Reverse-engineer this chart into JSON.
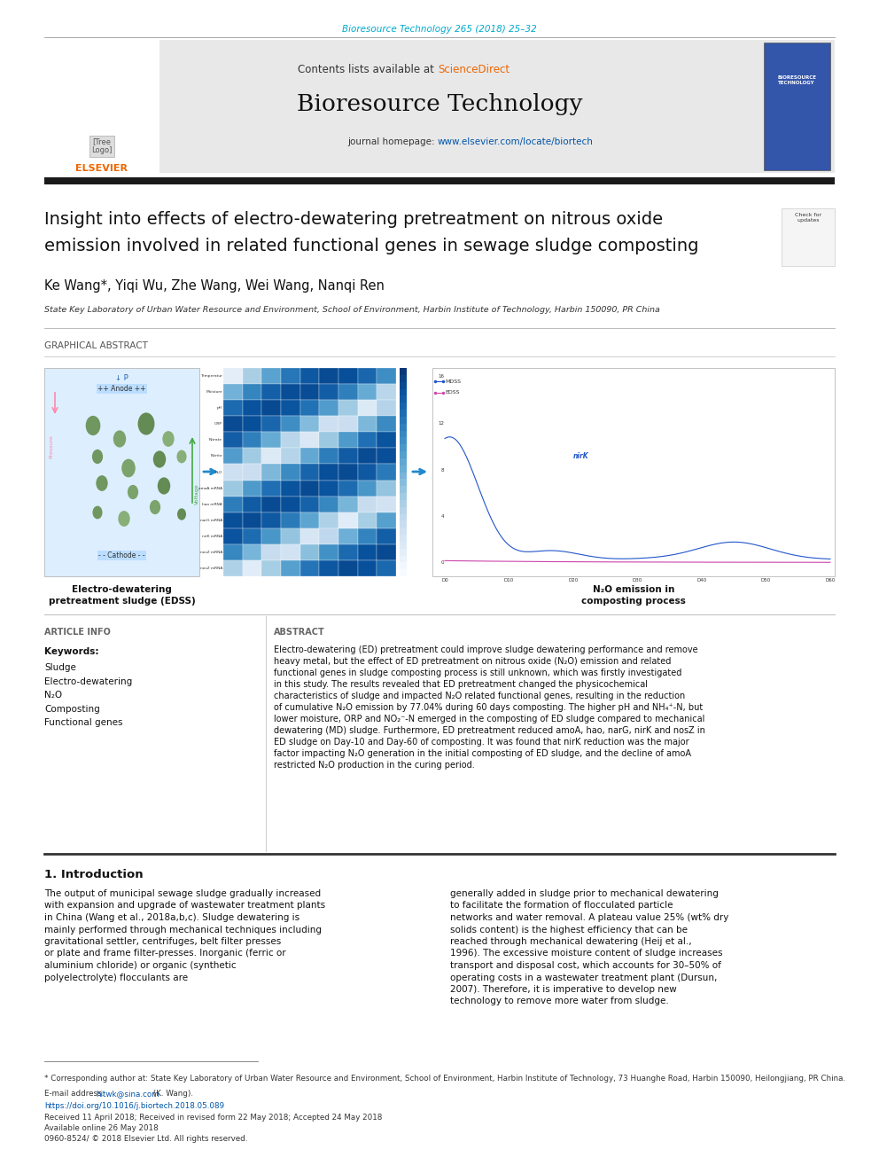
{
  "page_width": 9.92,
  "page_height": 13.23,
  "bg_color": "#ffffff",
  "top_journal_line": "Bioresource Technology 265 (2018) 25–32",
  "top_journal_color": "#00aacc",
  "header_bg": "#e8e8e8",
  "header_text1": "Contents lists available at ",
  "header_sciencedirect": "ScienceDirect",
  "header_sd_color": "#ee6600",
  "journal_title": "Bioresource Technology",
  "journal_homepage_text": "journal homepage: ",
  "journal_url": "www.elsevier.com/locate/biortech",
  "journal_url_color": "#0055aa",
  "article_title_line1": "Insight into effects of electro-dewatering pretreatment on nitrous oxide",
  "article_title_line2": "emission involved in related functional genes in sewage sludge composting",
  "authors": "Ke Wang*, Yiqi Wu, Zhe Wang, Wei Wang, Nanqi Ren",
  "affiliation": "State Key Laboratory of Urban Water Resource and Environment, School of Environment, Harbin Institute of Technology, Harbin 150090, PR China",
  "section_graphical": "GRAPHICAL ABSTRACT",
  "graphical_label1": "Electro-dewatering",
  "graphical_label2": "pretreatment sludge (EDSS)",
  "graphical_caption1": "N₂O emission in",
  "graphical_caption2": "composting process",
  "section_article": "ARTICLE INFO",
  "keywords_label": "Keywords:",
  "keywords": [
    "Sludge",
    "Electro-dewatering",
    "N₂O",
    "Composting",
    "Functional genes"
  ],
  "section_abstract": "ABSTRACT",
  "abstract_text": "Electro-dewatering (ED) pretreatment could improve sludge dewatering performance and remove heavy metal, but the effect of ED pretreatment on nitrous oxide (N₂O) emission and related functional genes in sludge composting process is still unknown, which was firstly investigated in this study. The results revealed that ED pretreatment changed the physicochemical characteristics of sludge and impacted N₂O related functional genes, resulting in the reduction of cumulative N₂O emission by 77.04% during 60 days composting. The higher pH and NH₄⁺-N, but lower moisture, ORP and NO₂⁻-N emerged in the composting of ED sludge compared to mechanical dewatering (MD) sludge. Furthermore, ED pretreatment reduced amoA, hao, narG, nirK and nosZ in ED sludge on Day-10 and Day-60 of composting. It was found that nirK reduction was the major factor impacting N₂O generation in the initial composting of ED sludge, and the decline of amoA restricted N₂O production in the curing period.",
  "section_intro": "1. Introduction",
  "intro_col1": "The output of municipal sewage sludge gradually increased with expansion and upgrade of wastewater treatment plants in China (Wang et al., 2018a,b,c). Sludge dewatering is mainly performed through mechanical techniques including gravitational settler, centrifuges, belt filter presses or plate and frame filter-presses. Inorganic (ferric or aluminium chloride) or organic (synthetic polyelectrolyte) flocculants are",
  "intro_col2": "generally added in sludge prior to mechanical dewatering to facilitate the formation of flocculated particle networks and water removal. A plateau value 25% (wt% dry solids content) is the highest efficiency that can be reached through mechanical dewatering (Heij et al., 1996). The excessive moisture content of sludge increases transport and disposal cost, which accounts for 30–50% of operating costs in a wastewater treatment plant (Dursun, 2007). Therefore, it is imperative to develop new technology to remove more water from sludge.",
  "footnote_corresponding": "* Corresponding author at: State Key Laboratory of Urban Water Resource and Environment, School of Environment, Harbin Institute of Technology, 73 Huanghe Road, Harbin 150090, Heilongjiang, PR China.",
  "footnote_email_label": "E-mail address: ",
  "footnote_email": "hitwk@sina.com",
  "footnote_email_color": "#0055aa",
  "footnote_email_name": " (K. Wang).",
  "footnote_doi": "https://doi.org/10.1016/j.biortech.2018.05.089",
  "footnote_doi_color": "#0055aa",
  "footnote_received": "Received 11 April 2018; Received in revised form 22 May 2018; Accepted 24 May 2018",
  "footnote_available": "Available online 26 May 2018",
  "footnote_issn": "0960-8524/ © 2018 Elsevier Ltd. All rights reserved.",
  "thick_bar_color": "#1a1a1a"
}
